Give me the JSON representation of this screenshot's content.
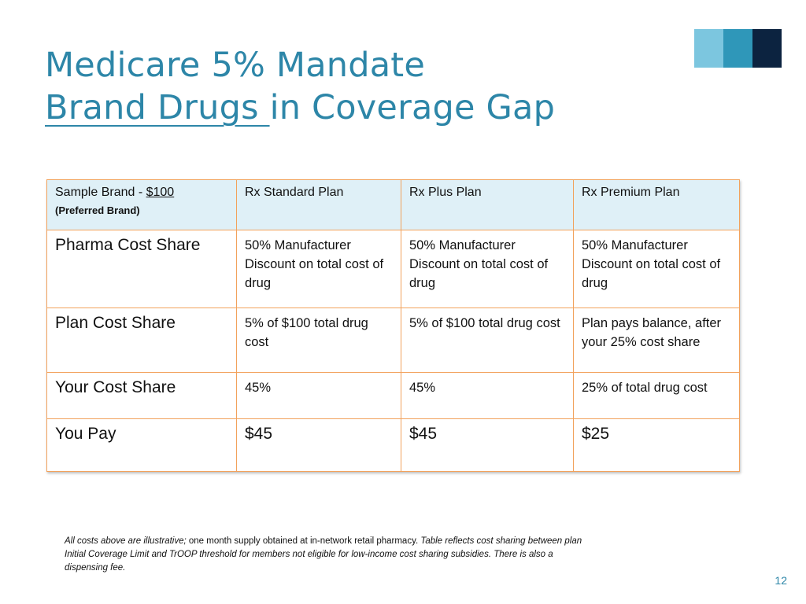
{
  "title": {
    "line1": "Medicare 5% Mandate",
    "line2_underlined": "Brand Drugs ",
    "line2_rest": "in Coverage Gap"
  },
  "table": {
    "header": {
      "sample_label": "Sample Brand  - ",
      "sample_price": "$100",
      "sample_sub": "(Preferred Brand)",
      "plans": [
        "Rx Standard Plan",
        "Rx Plus Plan",
        "Rx Premium Plan"
      ]
    },
    "rows": [
      {
        "label": "Pharma Cost Share",
        "values": [
          "50% Manufacturer Discount on total cost of drug",
          "50% Manufacturer Discount on total cost of drug",
          "50% Manufacturer Discount on total cost of drug"
        ]
      },
      {
        "label": "Plan Cost Share",
        "values": [
          "5% of $100 total drug cost",
          "5% of $100 total drug cost",
          "Plan pays balance, after your 25% cost share"
        ]
      },
      {
        "label": "Your Cost Share",
        "values": [
          "45%",
          "45%",
          "25% of total drug cost"
        ]
      },
      {
        "label": "You Pay",
        "values": [
          "$45",
          "$45",
          "$25"
        ]
      }
    ]
  },
  "footnote": {
    "italic1": "All costs above are illustrative;",
    "normal": " one month supply obtained at in-network retail pharmacy.  ",
    "italic2": "Table reflects cost sharing between plan Initial Coverage Limit and TrOOP threshold for members not eligible for low-income cost sharing subsidies.  There is also a dispensing fee."
  },
  "page_number": "12",
  "colors": {
    "accent": "#2d86a8",
    "header_bg": "#dff0f7",
    "border": "#f2a25c",
    "deco_light": "#7cc6df",
    "deco_mid": "#2f97b9",
    "deco_dark": "#0c2340"
  }
}
